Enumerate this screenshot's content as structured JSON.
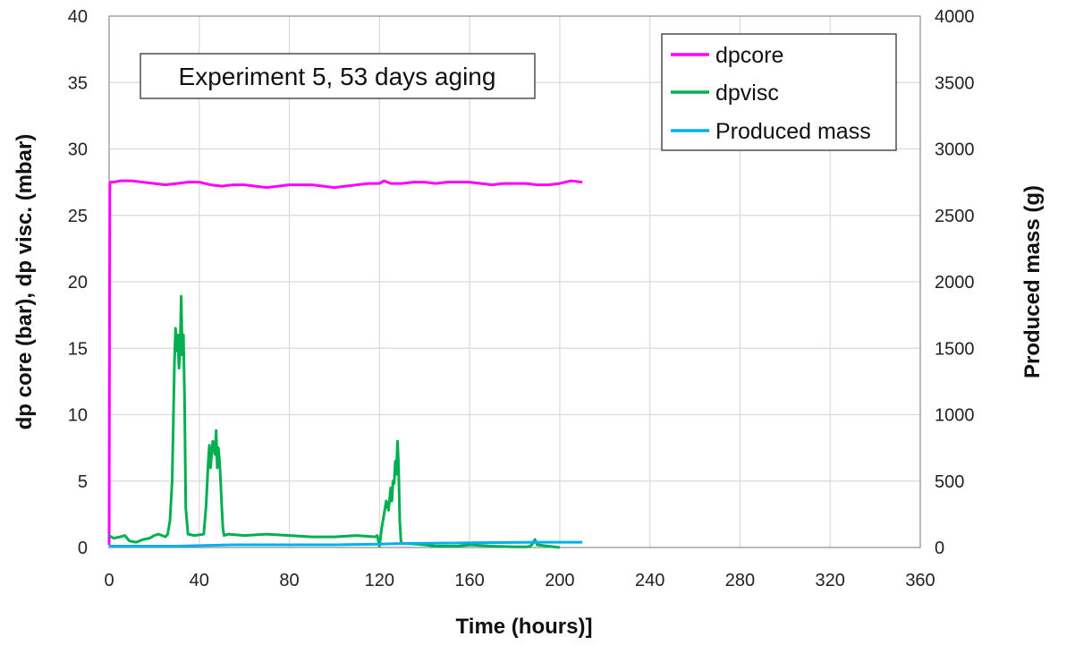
{
  "chart_data": {
    "type": "line",
    "title": "",
    "annotation": "Experiment 5, 53 days aging",
    "xlabel": "Time (hours)]",
    "ylabel": "dp core (bar), dp visc. (mbar)",
    "y2label": "Produced mass (g)",
    "xlim": [
      0,
      360
    ],
    "ylim": [
      0,
      40
    ],
    "y2lim": [
      0,
      4000
    ],
    "xticks": [
      "0",
      "40",
      "80",
      "120",
      "160",
      "200",
      "240",
      "280",
      "320",
      "360"
    ],
    "yticks": [
      "0",
      "5",
      "10",
      "15",
      "20",
      "25",
      "30",
      "35",
      "40"
    ],
    "y2ticks": [
      "0",
      "500",
      "1000",
      "1500",
      "2000",
      "2500",
      "3000",
      "3500",
      "4000"
    ],
    "grid": true,
    "legend_position": "top-right",
    "series": [
      {
        "name": "dpcore",
        "axis": "left",
        "color": "#ff00ff",
        "x": [
          0,
          0.3,
          0.6,
          2,
          5,
          10,
          15,
          20,
          25,
          30,
          35,
          40,
          45,
          50,
          55,
          60,
          65,
          70,
          75,
          80,
          85,
          90,
          95,
          100,
          105,
          110,
          115,
          120,
          122,
          125,
          130,
          135,
          140,
          145,
          150,
          155,
          160,
          165,
          170,
          175,
          180,
          185,
          190,
          195,
          200,
          205,
          210
        ],
        "y": [
          0.2,
          27.4,
          27.5,
          27.5,
          27.6,
          27.6,
          27.5,
          27.4,
          27.3,
          27.4,
          27.5,
          27.5,
          27.3,
          27.2,
          27.3,
          27.3,
          27.2,
          27.1,
          27.2,
          27.3,
          27.3,
          27.3,
          27.2,
          27.1,
          27.2,
          27.3,
          27.4,
          27.4,
          27.6,
          27.4,
          27.4,
          27.5,
          27.5,
          27.4,
          27.5,
          27.5,
          27.5,
          27.4,
          27.3,
          27.4,
          27.4,
          27.4,
          27.3,
          27.3,
          27.4,
          27.6,
          27.5
        ]
      },
      {
        "name": "dpvisc",
        "axis": "left",
        "color": "#00b050",
        "x": [
          0,
          2,
          5,
          7,
          9,
          12,
          15,
          18,
          20,
          22,
          25,
          26,
          27,
          28,
          29,
          29.5,
          30,
          30.5,
          31,
          31.5,
          32,
          32.5,
          33,
          33.5,
          34,
          35,
          38,
          42,
          43,
          44,
          44.5,
          45,
          46,
          47,
          47.5,
          48,
          48.5,
          49,
          49.5,
          50,
          50.5,
          51,
          53,
          60,
          70,
          80,
          90,
          100,
          110,
          118,
          119,
          120,
          121,
          122,
          123,
          124,
          125,
          125.5,
          126,
          126.5,
          127,
          127.5,
          128,
          128.5,
          129,
          129.5,
          130,
          132,
          140,
          145,
          150,
          155,
          160,
          170,
          180,
          185,
          187,
          188,
          189,
          190,
          195,
          200
        ],
        "y": [
          0.9,
          0.7,
          0.8,
          0.9,
          0.5,
          0.4,
          0.6,
          0.7,
          0.9,
          1.0,
          0.8,
          1.0,
          2.0,
          5.0,
          14.0,
          16.5,
          14.8,
          16.0,
          13.5,
          15.0,
          18.9,
          14.5,
          16.0,
          11.0,
          3.0,
          1.0,
          0.9,
          1.0,
          3.0,
          6.5,
          7.7,
          6.0,
          8.0,
          7.0,
          8.8,
          6.0,
          7.5,
          6.5,
          5.0,
          3.0,
          1.5,
          0.9,
          1.0,
          0.9,
          1.0,
          0.9,
          0.8,
          0.8,
          0.9,
          0.8,
          0.9,
          0.1,
          1.5,
          2.5,
          3.5,
          2.8,
          4.5,
          3.5,
          5.0,
          4.8,
          6.5,
          5.5,
          8.0,
          6.0,
          2.0,
          0.5,
          0.3,
          0.3,
          0.2,
          0.1,
          0.1,
          0.1,
          0.2,
          0.1,
          0.05,
          0.05,
          0.1,
          0.3,
          0.6,
          0.2,
          0.1,
          0.0
        ]
      },
      {
        "name": "Produced mass",
        "axis": "right",
        "color": "#00b0f0",
        "x": [
          0,
          30,
          55,
          60,
          100,
          120,
          130,
          160,
          190,
          200,
          210
        ],
        "y": [
          10,
          10,
          20,
          20,
          20,
          25,
          30,
          35,
          40,
          40,
          40
        ]
      }
    ]
  }
}
